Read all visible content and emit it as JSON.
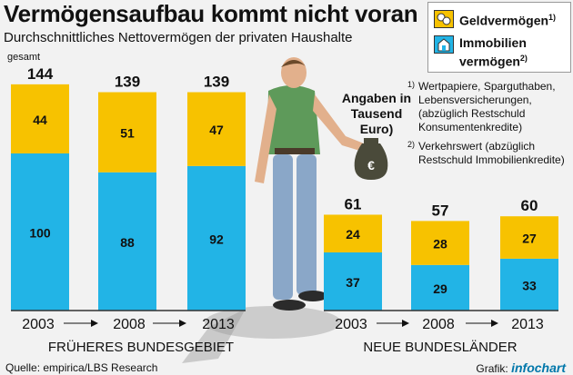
{
  "header": {
    "title": "Vermögensaufbau kommt nicht voran",
    "subtitle": "Durchschnittliches Nettovermögen der privaten Haushalte"
  },
  "legend": {
    "items": [
      {
        "label": "Geldvermögen",
        "note": "1)",
        "color": "#f7c200"
      },
      {
        "label": "Immobilien vermögen",
        "note": "2)",
        "color": "#22b4e6"
      }
    ]
  },
  "units_label": "Angaben in Tausend Euro)",
  "notes": [
    {
      "mark": "1)",
      "text": "Wertpapiere, Sparguthaben, Lebensversicherungen, (abzüglich Restschuld Konsumentenkredite)"
    },
    {
      "mark": "2)",
      "text": "Verkehrswert (abzüglich Restschuld Immobilienkredite)"
    }
  ],
  "total_label": "gesamt",
  "footer": {
    "source": "Quelle: empirica/LBS Research",
    "credit_prefix": "Grafik:",
    "credit_brand": "infochart"
  },
  "chart_data": [
    {
      "type": "bar",
      "group_label": "FRÜHERES BUNDESGEBIET",
      "categories": [
        "2003",
        "2008",
        "2013"
      ],
      "series": [
        {
          "name": "Immobilienvermögen",
          "values": [
            100,
            88,
            92
          ]
        },
        {
          "name": "Geldvermögen",
          "values": [
            44,
            51,
            47
          ]
        }
      ],
      "totals": [
        144,
        139,
        139
      ],
      "stacked": true
    },
    {
      "type": "bar",
      "group_label": "NEUE BUNDESLÄNDER",
      "categories": [
        "2003",
        "2008",
        "2013"
      ],
      "series": [
        {
          "name": "Immobilienvermögen",
          "values": [
            37,
            29,
            33
          ]
        },
        {
          "name": "Geldvermögen",
          "values": [
            24,
            28,
            27
          ]
        }
      ],
      "totals": [
        61,
        57,
        60
      ],
      "stacked": true
    }
  ],
  "colors": {
    "geld": "#f7c200",
    "immo": "#22b4e6",
    "baseline": "#333333"
  },
  "icons": [
    "coins-icon",
    "house-icon",
    "person-illustration",
    "money-bag-icon"
  ]
}
